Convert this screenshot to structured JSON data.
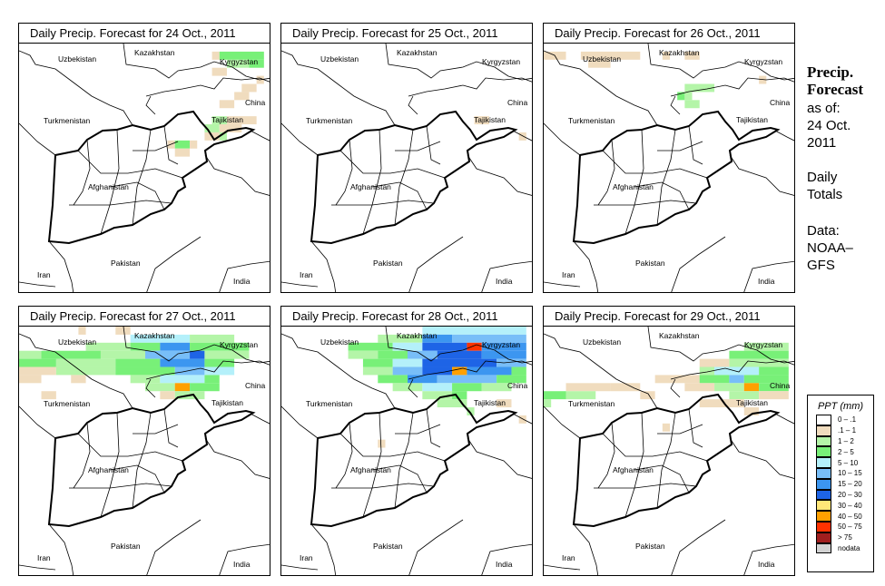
{
  "panels": [
    {
      "title": "Daily Precip. Forecast for  24 Oct., 2011",
      "precip_runs": [
        [
          41.5,
          72.5,
          73,
          1
        ],
        [
          41.5,
          73,
          76,
          3
        ],
        [
          41,
          73.5,
          75,
          2
        ],
        [
          41,
          75,
          76,
          3
        ],
        [
          40.5,
          72.5,
          73.5,
          1
        ],
        [
          40,
          75.5,
          76,
          1
        ],
        [
          39.5,
          74.5,
          75.5,
          1
        ],
        [
          39,
          74,
          75,
          1
        ],
        [
          38.5,
          73,
          74,
          1
        ],
        [
          37.5,
          72.5,
          73.5,
          2
        ],
        [
          37.5,
          73.5,
          75.5,
          1
        ],
        [
          37,
          72,
          73,
          2
        ],
        [
          37,
          73,
          74.5,
          1
        ],
        [
          36.5,
          72,
          73,
          1
        ],
        [
          36.5,
          73,
          73.5,
          2
        ],
        [
          36,
          69.5,
          70,
          1
        ],
        [
          36,
          70,
          71,
          3
        ],
        [
          36,
          71,
          71.5,
          1
        ],
        [
          35.5,
          70,
          71,
          1
        ]
      ]
    },
    {
      "title": "Daily Precip. Forecast for  25 Oct., 2011",
      "precip_runs": [
        [
          37.5,
          72.5,
          73.5,
          1
        ],
        [
          36.5,
          75.5,
          76,
          1
        ]
      ]
    },
    {
      "title": "Daily Precip. Forecast for  26 Oct., 2011",
      "precip_runs": [
        [
          41.5,
          59.5,
          61,
          1
        ],
        [
          41.5,
          62,
          66,
          1
        ],
        [
          41.5,
          67.5,
          68,
          1
        ],
        [
          41.5,
          69,
          70,
          1
        ],
        [
          41,
          62.5,
          64,
          1
        ],
        [
          40,
          74,
          74.5,
          1
        ],
        [
          39.5,
          69,
          71,
          2
        ],
        [
          39,
          68.5,
          69,
          3
        ],
        [
          39,
          69,
          69.5,
          2
        ],
        [
          38.5,
          69,
          70,
          2
        ]
      ]
    },
    {
      "title": "Daily Precip. Forecast for  27 Oct., 2011",
      "precip_runs": [
        [
          42,
          63.5,
          64,
          1
        ],
        [
          42,
          66,
          67,
          1
        ],
        [
          41.5,
          67,
          71,
          4
        ],
        [
          41.5,
          71,
          74,
          2
        ],
        [
          41,
          64,
          67,
          2
        ],
        [
          41,
          67,
          69,
          3
        ],
        [
          41,
          69,
          71,
          6
        ],
        [
          41,
          71,
          75,
          3
        ],
        [
          40.5,
          59.5,
          61,
          2
        ],
        [
          40.5,
          61,
          65,
          3
        ],
        [
          40.5,
          65,
          68,
          2
        ],
        [
          40.5,
          68,
          71,
          5
        ],
        [
          40.5,
          71,
          72,
          7
        ],
        [
          40.5,
          72,
          75,
          2
        ],
        [
          40,
          59.5,
          62,
          3
        ],
        [
          40,
          62,
          66,
          2
        ],
        [
          40,
          66,
          69,
          3
        ],
        [
          40,
          69,
          72,
          6
        ],
        [
          40,
          72,
          74,
          3
        ],
        [
          39.5,
          59.5,
          62,
          1
        ],
        [
          39.5,
          62,
          66,
          2
        ],
        [
          39.5,
          66,
          70,
          3
        ],
        [
          39.5,
          70,
          72,
          5
        ],
        [
          39.5,
          72,
          74,
          4
        ],
        [
          39,
          59.5,
          61,
          1
        ],
        [
          39,
          63,
          64,
          1
        ],
        [
          39,
          67,
          69,
          2
        ],
        [
          39,
          69,
          72,
          4
        ],
        [
          39,
          72,
          73,
          3
        ],
        [
          38.5,
          68,
          70,
          2
        ],
        [
          38.5,
          70,
          71,
          9
        ],
        [
          38.5,
          71,
          73,
          3
        ],
        [
          38,
          61,
          62,
          1
        ],
        [
          38,
          69,
          70,
          1
        ],
        [
          38,
          70,
          72,
          2
        ]
      ]
    },
    {
      "title": "Daily Precip. Forecast for  28 Oct., 2011",
      "precip_runs": [
        [
          42,
          69,
          76,
          4
        ],
        [
          41.5,
          66,
          69,
          2
        ],
        [
          41.5,
          69,
          71,
          6
        ],
        [
          41.5,
          71,
          76,
          5
        ],
        [
          41,
          64,
          67,
          3
        ],
        [
          41,
          67,
          69,
          4
        ],
        [
          41,
          69,
          72,
          7
        ],
        [
          41,
          72,
          73,
          10
        ],
        [
          41,
          73,
          76,
          6
        ],
        [
          40.5,
          64,
          66,
          2
        ],
        [
          40.5,
          66,
          68,
          3
        ],
        [
          40.5,
          68,
          70,
          5
        ],
        [
          40.5,
          70,
          73,
          7
        ],
        [
          40.5,
          73,
          76,
          6
        ],
        [
          40,
          65,
          67,
          3
        ],
        [
          40,
          67,
          69,
          4
        ],
        [
          40,
          69,
          74,
          7
        ],
        [
          40,
          74,
          76,
          5
        ],
        [
          39.5,
          65,
          67,
          2
        ],
        [
          39.5,
          67,
          69,
          5
        ],
        [
          39.5,
          69,
          71,
          7
        ],
        [
          39.5,
          71,
          72,
          9
        ],
        [
          39.5,
          72,
          75,
          6
        ],
        [
          39.5,
          75,
          76,
          3
        ],
        [
          39,
          66,
          68,
          3
        ],
        [
          39,
          68,
          70,
          6
        ],
        [
          39,
          70,
          74,
          5
        ],
        [
          39,
          74,
          76,
          3
        ],
        [
          38.5,
          67,
          69,
          2
        ],
        [
          38.5,
          69,
          71,
          4
        ],
        [
          38.5,
          71,
          73,
          3
        ],
        [
          38.5,
          73,
          75,
          2
        ],
        [
          38,
          69,
          71,
          2
        ],
        [
          38,
          71,
          72,
          3
        ],
        [
          37.5,
          70,
          72,
          2
        ],
        [
          37.5,
          74,
          75,
          1
        ],
        [
          37,
          72,
          72.5,
          2
        ],
        [
          36.5,
          75.5,
          76,
          1
        ],
        [
          35,
          66,
          66.5,
          1
        ]
      ]
    },
    {
      "title": "Daily Precip. Forecast for  29 Oct., 2011",
      "precip_runs": [
        [
          41,
          73,
          76,
          2
        ],
        [
          40.5,
          72,
          76,
          3
        ],
        [
          40,
          70,
          72,
          1
        ],
        [
          40,
          72,
          76,
          2
        ],
        [
          39.5,
          70,
          71,
          2
        ],
        [
          39.5,
          71,
          74,
          4
        ],
        [
          39.5,
          74,
          76,
          3
        ],
        [
          39,
          67,
          70,
          1
        ],
        [
          39,
          70,
          72,
          3
        ],
        [
          39,
          72,
          73,
          5
        ],
        [
          39,
          73,
          76,
          3
        ],
        [
          38.5,
          61,
          64,
          1
        ],
        [
          38.5,
          64,
          66,
          1
        ],
        [
          38.5,
          69,
          71,
          1
        ],
        [
          38.5,
          71,
          73,
          2
        ],
        [
          38.5,
          73,
          74,
          9
        ],
        [
          38.5,
          74,
          76,
          3
        ],
        [
          38,
          59.5,
          61,
          3
        ],
        [
          38,
          61,
          63,
          2
        ],
        [
          38,
          66,
          67,
          1
        ],
        [
          38,
          72,
          74,
          2
        ],
        [
          38,
          74,
          76,
          1
        ],
        [
          37.5,
          59.5,
          60,
          2
        ],
        [
          37.5,
          70,
          72,
          1
        ],
        [
          37.5,
          72,
          73,
          1
        ],
        [
          37,
          73,
          74,
          1
        ],
        [
          36,
          67.5,
          68,
          1
        ]
      ]
    }
  ],
  "country_labels": [
    "Uzbekistan",
    "Kazakhstan",
    "Kyrgyzstan",
    "China",
    "Turkmenistan",
    "Tajikistan",
    "Afghanistan",
    "Pakistan",
    "Iran",
    "India"
  ],
  "side": {
    "title1": "Precip.",
    "title2": "Forecast",
    "asof": "as of:",
    "date1": "24 Oct.",
    "date2": "2011",
    "daily1": "Daily",
    "daily2": "Totals",
    "data1": "Data:",
    "data2": "NOAA–",
    "data3": "GFS"
  },
  "legend": {
    "title": "PPT (mm)",
    "items": [
      {
        "label": "0 – .1",
        "color": "#ffffff"
      },
      {
        "label": ".1 – 1",
        "color": "#f0dcbe"
      },
      {
        "label": "1 – 2",
        "color": "#b4f5a8"
      },
      {
        "label": "2 – 5",
        "color": "#78f078"
      },
      {
        "label": "5 – 10",
        "color": "#b4f0fa"
      },
      {
        "label": "10 – 15",
        "color": "#78bef8"
      },
      {
        "label": "15 – 20",
        "color": "#3c96f0"
      },
      {
        "label": "20 – 30",
        "color": "#1e64e6"
      },
      {
        "label": "30 – 40",
        "color": "#ffe678"
      },
      {
        "label": "40 – 50",
        "color": "#ffa000"
      },
      {
        "label": "50 – 75",
        "color": "#ff3200"
      },
      {
        "label": "> 75",
        "color": "#a01e1e"
      },
      {
        "label": "nodata",
        "color": "#d2d2d2"
      }
    ]
  }
}
